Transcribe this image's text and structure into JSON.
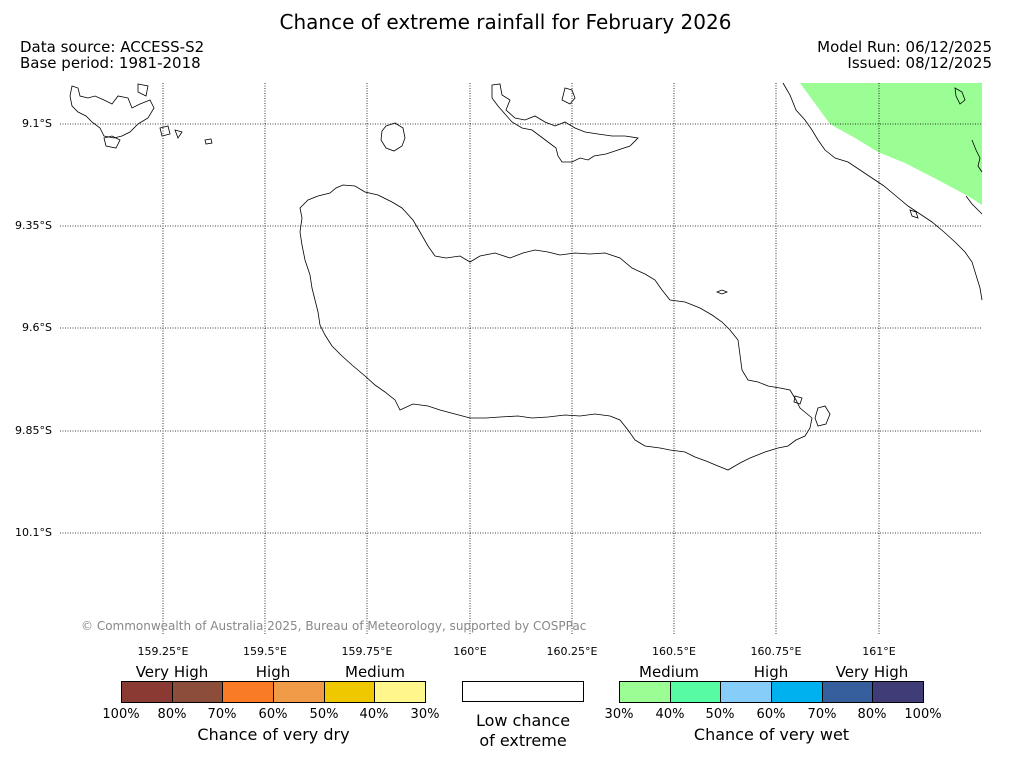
{
  "title": "Chance of extreme rainfall for February 2026",
  "data_source": "Data source: ACCESS-S2",
  "base_period": "Base period: 1981-2018",
  "model_run": "Model Run: 06/12/2025",
  "issued": "Issued: 08/12/2025",
  "copyright": "© Commonwealth of Australia 2025, Bureau of Meteorology, supported by COSPPac",
  "lat_labels": [
    "9.1°S",
    "9.35°S",
    "9.6°S",
    "9.85°S",
    "10.1°S"
  ],
  "lon_labels": [
    "159.25°E",
    "159.5°E",
    "159.75°E",
    "160°E",
    "160.25°E",
    "160.5°E",
    "160.75°E",
    "161°E"
  ],
  "legend": {
    "dry": {
      "title": "Chance of very dry",
      "categories": [
        "Very High",
        "High",
        "Medium"
      ],
      "ticks": [
        "100%",
        "80%",
        "70%",
        "60%",
        "50%",
        "40%",
        "30%"
      ],
      "colors": [
        "#8b3a33",
        "#8c4e3b",
        "#f97b25",
        "#ef9b48",
        "#f0c800",
        "#fff68c"
      ]
    },
    "low": {
      "title_line1": "Low chance",
      "title_line2": "of extreme",
      "color": "#ffffff"
    },
    "wet": {
      "title": "Chance of very wet",
      "categories": [
        "Medium",
        "High",
        "Very High"
      ],
      "ticks": [
        "30%",
        "40%",
        "50%",
        "60%",
        "70%",
        "80%",
        "100%"
      ],
      "colors": [
        "#9bfe94",
        "#56fba3",
        "#87cdfa",
        "#00b1ef",
        "#365f9e",
        "#403c77"
      ]
    }
  },
  "colors": {
    "medium_wet": "#9bfe94",
    "coastline": "#000000",
    "grid": "#000000"
  }
}
